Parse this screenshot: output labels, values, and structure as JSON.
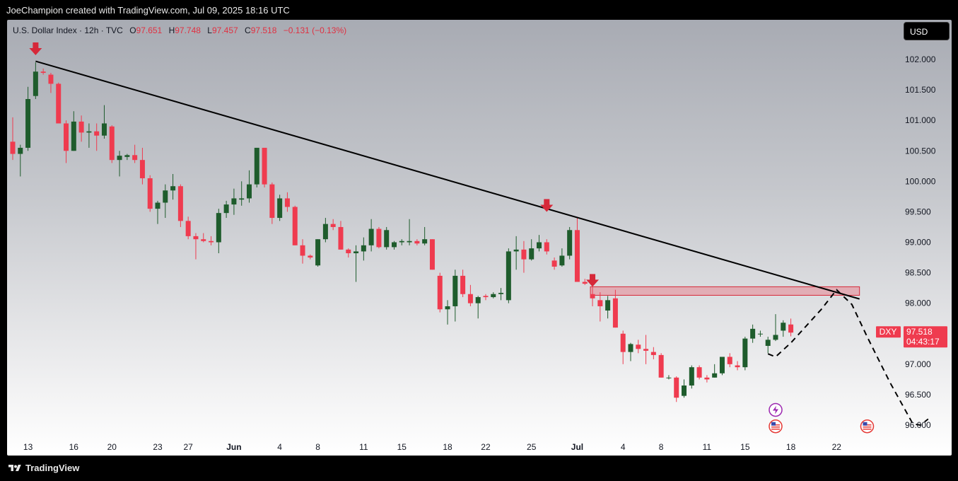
{
  "header": {
    "attribution": "JoeChampion created with TradingView.com, Jul 09, 2025 18:16 UTC"
  },
  "legend": {
    "title": "U.S. Dollar Index · 12h · TVC",
    "o_label": "O",
    "o_value": "97.651",
    "h_label": "H",
    "h_value": "97.748",
    "l_label": "L",
    "l_value": "97.457",
    "c_label": "C",
    "c_value": "97.518",
    "change": "−0.131 (−0.13%)"
  },
  "currency_button": "USD",
  "price_badge": {
    "symbol": "DXY",
    "price": "97.518",
    "countdown": "04:43:17"
  },
  "footer": {
    "brand": "TradingView"
  },
  "colors": {
    "up": "#1e5c2c",
    "down": "#ef3b4f",
    "marker": "#d62839",
    "zone_fill": "rgba(239,83,100,0.35)",
    "zone_stroke": "#d62839"
  },
  "chart_data": {
    "type": "candlestick",
    "symbol": "DXY",
    "interval": "12h",
    "ylim": [
      95.8,
      102.2
    ],
    "y_ticks": [
      "102.000",
      "101.500",
      "101.000",
      "100.500",
      "100.000",
      "99.500",
      "99.000",
      "98.500",
      "98.000",
      "97.500",
      "97.000",
      "96.500",
      "96.000"
    ],
    "x_ticks": [
      {
        "label": "13",
        "i": 2,
        "bold": false
      },
      {
        "label": "16",
        "i": 8,
        "bold": false
      },
      {
        "label": "20",
        "i": 13,
        "bold": false
      },
      {
        "label": "23",
        "i": 19,
        "bold": false
      },
      {
        "label": "27",
        "i": 23,
        "bold": false
      },
      {
        "label": "Jun",
        "i": 29,
        "bold": true
      },
      {
        "label": "4",
        "i": 35,
        "bold": false
      },
      {
        "label": "8",
        "i": 40,
        "bold": false
      },
      {
        "label": "11",
        "i": 46,
        "bold": false
      },
      {
        "label": "15",
        "i": 51,
        "bold": false
      },
      {
        "label": "18",
        "i": 57,
        "bold": false
      },
      {
        "label": "22",
        "i": 62,
        "bold": false
      },
      {
        "label": "25",
        "i": 68,
        "bold": false
      },
      {
        "label": "Jul",
        "i": 74,
        "bold": true
      },
      {
        "label": "4",
        "i": 80,
        "bold": false
      },
      {
        "label": "8",
        "i": 85,
        "bold": false
      },
      {
        "label": "11",
        "i": 91,
        "bold": false
      },
      {
        "label": "15",
        "i": 96,
        "bold": false
      },
      {
        "label": "18",
        "i": 102,
        "bold": false
      },
      {
        "label": "22",
        "i": 108,
        "bold": false
      }
    ],
    "candles": [
      {
        "o": 100.65,
        "h": 101.05,
        "l": 100.35,
        "c": 100.45
      },
      {
        "o": 100.45,
        "h": 100.6,
        "l": 100.08,
        "c": 100.55
      },
      {
        "o": 100.55,
        "h": 101.55,
        "l": 100.5,
        "c": 101.35
      },
      {
        "o": 101.4,
        "h": 101.95,
        "l": 101.35,
        "c": 101.8
      },
      {
        "o": 101.8,
        "h": 101.85,
        "l": 101.75,
        "c": 101.78
      },
      {
        "o": 101.75,
        "h": 101.78,
        "l": 101.45,
        "c": 101.6
      },
      {
        "o": 101.6,
        "h": 101.62,
        "l": 100.95,
        "c": 100.95
      },
      {
        "o": 100.95,
        "h": 101.0,
        "l": 100.3,
        "c": 100.5
      },
      {
        "o": 100.5,
        "h": 101.15,
        "l": 100.5,
        "c": 100.98
      },
      {
        "o": 100.98,
        "h": 101.08,
        "l": 100.65,
        "c": 100.8
      },
      {
        "o": 100.8,
        "h": 100.95,
        "l": 100.55,
        "c": 100.82
      },
      {
        "o": 100.82,
        "h": 100.95,
        "l": 100.5,
        "c": 100.75
      },
      {
        "o": 100.75,
        "h": 101.25,
        "l": 100.7,
        "c": 100.95
      },
      {
        "o": 100.9,
        "h": 100.92,
        "l": 100.3,
        "c": 100.35
      },
      {
        "o": 100.35,
        "h": 100.5,
        "l": 100.08,
        "c": 100.42
      },
      {
        "o": 100.4,
        "h": 100.45,
        "l": 100.35,
        "c": 100.43
      },
      {
        "o": 100.43,
        "h": 100.6,
        "l": 100.3,
        "c": 100.35
      },
      {
        "o": 100.35,
        "h": 100.55,
        "l": 99.95,
        "c": 100.05
      },
      {
        "o": 100.05,
        "h": 100.1,
        "l": 99.5,
        "c": 99.55
      },
      {
        "o": 99.55,
        "h": 99.68,
        "l": 99.3,
        "c": 99.65
      },
      {
        "o": 99.65,
        "h": 99.95,
        "l": 99.4,
        "c": 99.85
      },
      {
        "o": 99.85,
        "h": 100.12,
        "l": 99.7,
        "c": 99.92
      },
      {
        "o": 99.92,
        "h": 99.95,
        "l": 99.25,
        "c": 99.35
      },
      {
        "o": 99.35,
        "h": 99.42,
        "l": 99.05,
        "c": 99.1
      },
      {
        "o": 99.1,
        "h": 99.15,
        "l": 98.72,
        "c": 99.05
      },
      {
        "o": 99.05,
        "h": 99.15,
        "l": 99.0,
        "c": 99.02
      },
      {
        "o": 99.02,
        "h": 99.1,
        "l": 98.95,
        "c": 99.0
      },
      {
        "o": 99.0,
        "h": 99.55,
        "l": 98.82,
        "c": 99.48
      },
      {
        "o": 99.48,
        "h": 99.68,
        "l": 99.4,
        "c": 99.62
      },
      {
        "o": 99.62,
        "h": 99.88,
        "l": 99.45,
        "c": 99.72
      },
      {
        "o": 99.7,
        "h": 100.0,
        "l": 99.6,
        "c": 99.72
      },
      {
        "o": 99.72,
        "h": 100.18,
        "l": 99.65,
        "c": 99.95
      },
      {
        "o": 99.95,
        "h": 100.55,
        "l": 99.9,
        "c": 100.55
      },
      {
        "o": 100.55,
        "h": 100.55,
        "l": 99.9,
        "c": 99.95
      },
      {
        "o": 99.95,
        "h": 99.98,
        "l": 99.3,
        "c": 99.4
      },
      {
        "o": 99.4,
        "h": 99.78,
        "l": 99.35,
        "c": 99.72
      },
      {
        "o": 99.72,
        "h": 99.82,
        "l": 99.5,
        "c": 99.58
      },
      {
        "o": 99.58,
        "h": 99.6,
        "l": 98.95,
        "c": 98.95
      },
      {
        "o": 98.95,
        "h": 99.05,
        "l": 98.65,
        "c": 98.78
      },
      {
        "o": 98.78,
        "h": 98.8,
        "l": 98.72,
        "c": 98.75
      },
      {
        "o": 98.62,
        "h": 99.05,
        "l": 98.6,
        "c": 99.05
      },
      {
        "o": 99.05,
        "h": 99.4,
        "l": 99.0,
        "c": 99.3
      },
      {
        "o": 99.3,
        "h": 99.38,
        "l": 99.2,
        "c": 99.25
      },
      {
        "o": 99.25,
        "h": 99.35,
        "l": 98.88,
        "c": 98.88
      },
      {
        "o": 98.88,
        "h": 98.9,
        "l": 98.75,
        "c": 98.82
      },
      {
        "o": 98.82,
        "h": 98.95,
        "l": 98.35,
        "c": 98.85
      },
      {
        "o": 98.85,
        "h": 99.08,
        "l": 98.7,
        "c": 98.95
      },
      {
        "o": 98.95,
        "h": 99.38,
        "l": 98.85,
        "c": 99.22
      },
      {
        "o": 99.22,
        "h": 99.25,
        "l": 98.9,
        "c": 98.92
      },
      {
        "o": 98.92,
        "h": 99.25,
        "l": 98.88,
        "c": 99.2
      },
      {
        "o": 98.92,
        "h": 99.02,
        "l": 98.88,
        "c": 99.0
      },
      {
        "o": 99.0,
        "h": 99.05,
        "l": 98.95,
        "c": 99.02
      },
      {
        "o": 99.0,
        "h": 99.38,
        "l": 98.95,
        "c": 99.02
      },
      {
        "o": 99.02,
        "h": 99.05,
        "l": 98.95,
        "c": 98.98
      },
      {
        "o": 98.98,
        "h": 99.25,
        "l": 98.95,
        "c": 99.05
      },
      {
        "o": 99.05,
        "h": 99.05,
        "l": 98.55,
        "c": 98.55
      },
      {
        "o": 98.45,
        "h": 98.5,
        "l": 97.85,
        "c": 97.9
      },
      {
        "o": 97.9,
        "h": 98.05,
        "l": 97.65,
        "c": 97.95
      },
      {
        "o": 97.95,
        "h": 98.55,
        "l": 97.7,
        "c": 98.45
      },
      {
        "o": 98.45,
        "h": 98.55,
        "l": 98.1,
        "c": 98.15
      },
      {
        "o": 98.15,
        "h": 98.3,
        "l": 97.95,
        "c": 98.0
      },
      {
        "o": 98.0,
        "h": 98.12,
        "l": 97.75,
        "c": 98.1
      },
      {
        "o": 98.12,
        "h": 98.15,
        "l": 98.05,
        "c": 98.1
      },
      {
        "o": 98.1,
        "h": 98.18,
        "l": 98.08,
        "c": 98.15
      },
      {
        "o": 98.15,
        "h": 98.25,
        "l": 98.05,
        "c": 98.17
      },
      {
        "o": 98.05,
        "h": 98.9,
        "l": 98.0,
        "c": 98.85
      },
      {
        "o": 98.85,
        "h": 99.1,
        "l": 98.55,
        "c": 98.88
      },
      {
        "o": 98.88,
        "h": 99.02,
        "l": 98.5,
        "c": 98.72
      },
      {
        "o": 98.72,
        "h": 99.05,
        "l": 98.7,
        "c": 98.9
      },
      {
        "o": 98.9,
        "h": 99.12,
        "l": 98.85,
        "c": 99.0
      },
      {
        "o": 99.0,
        "h": 99.05,
        "l": 98.8,
        "c": 98.85
      },
      {
        "o": 98.7,
        "h": 98.75,
        "l": 98.55,
        "c": 98.6
      },
      {
        "o": 98.62,
        "h": 98.9,
        "l": 98.6,
        "c": 98.78
      },
      {
        "o": 98.78,
        "h": 99.25,
        "l": 98.72,
        "c": 99.2
      },
      {
        "o": 99.2,
        "h": 99.4,
        "l": 98.35,
        "c": 98.35
      },
      {
        "o": 98.35,
        "h": 98.4,
        "l": 98.3,
        "c": 98.32
      },
      {
        "o": 98.15,
        "h": 98.28,
        "l": 97.95,
        "c": 98.08
      },
      {
        "o": 98.05,
        "h": 98.18,
        "l": 97.7,
        "c": 97.95
      },
      {
        "o": 97.88,
        "h": 98.12,
        "l": 97.75,
        "c": 98.05
      },
      {
        "o": 98.08,
        "h": 98.22,
        "l": 97.6,
        "c": 97.6
      },
      {
        "o": 97.5,
        "h": 97.55,
        "l": 97.0,
        "c": 97.2
      },
      {
        "o": 97.2,
        "h": 97.35,
        "l": 97.05,
        "c": 97.33
      },
      {
        "o": 97.32,
        "h": 97.4,
        "l": 97.18,
        "c": 97.25
      },
      {
        "o": 97.25,
        "h": 97.48,
        "l": 97.0,
        "c": 97.22
      },
      {
        "o": 97.2,
        "h": 97.28,
        "l": 97.08,
        "c": 97.15
      },
      {
        "o": 97.15,
        "h": 97.18,
        "l": 96.78,
        "c": 96.78
      },
      {
        "o": 96.78,
        "h": 96.82,
        "l": 96.75,
        "c": 96.78
      },
      {
        "o": 96.78,
        "h": 96.8,
        "l": 96.38,
        "c": 96.45
      },
      {
        "o": 96.48,
        "h": 96.75,
        "l": 96.45,
        "c": 96.65
      },
      {
        "o": 96.65,
        "h": 96.98,
        "l": 96.6,
        "c": 96.95
      },
      {
        "o": 96.95,
        "h": 96.98,
        "l": 96.75,
        "c": 96.78
      },
      {
        "o": 96.78,
        "h": 96.82,
        "l": 96.7,
        "c": 96.75
      },
      {
        "o": 96.78,
        "h": 97.0,
        "l": 96.78,
        "c": 96.85
      },
      {
        "o": 96.85,
        "h": 97.12,
        "l": 96.82,
        "c": 97.12
      },
      {
        "o": 97.12,
        "h": 97.18,
        "l": 96.95,
        "c": 97.0
      },
      {
        "o": 96.98,
        "h": 97.05,
        "l": 96.9,
        "c": 96.95
      },
      {
        "o": 96.95,
        "h": 97.45,
        "l": 96.9,
        "c": 97.42
      },
      {
        "o": 97.42,
        "h": 97.65,
        "l": 97.35,
        "c": 97.58
      },
      {
        "o": 97.5,
        "h": 97.55,
        "l": 97.45,
        "c": 97.5
      },
      {
        "o": 97.3,
        "h": 97.45,
        "l": 97.18,
        "c": 97.4
      },
      {
        "o": 97.4,
        "h": 97.82,
        "l": 97.38,
        "c": 97.48
      },
      {
        "o": 97.55,
        "h": 97.72,
        "l": 97.45,
        "c": 97.68
      },
      {
        "o": 97.651,
        "h": 97.748,
        "l": 97.457,
        "c": 97.518
      }
    ],
    "trendline": [
      {
        "i": 3,
        "p": 101.97
      },
      {
        "i": 111,
        "p": 98.07
      }
    ],
    "resistance_zone": {
      "i_from": 76,
      "i_to": 111,
      "p_top": 98.27,
      "p_bottom": 98.13
    },
    "arrow_markers": [
      {
        "i": 3,
        "p": 102.0
      },
      {
        "i": 70,
        "p": 99.43
      },
      {
        "i": 76,
        "p": 98.2
      }
    ],
    "projection_path": [
      {
        "i": 99,
        "p": 97.17
      },
      {
        "i": 100,
        "p": 97.12
      },
      {
        "i": 102,
        "p": 97.35
      },
      {
        "i": 106,
        "p": 97.9
      },
      {
        "i": 108,
        "p": 98.22
      },
      {
        "i": 110,
        "p": 97.98
      },
      {
        "i": 112,
        "p": 97.45
      },
      {
        "i": 115,
        "p": 96.7
      },
      {
        "i": 118,
        "p": 96.02
      },
      {
        "i": 119,
        "p": 96.0
      },
      {
        "i": 120,
        "p": 96.1
      }
    ],
    "event_icons": [
      {
        "i": 100,
        "p": 96.25,
        "kind": "lightning-icon"
      },
      {
        "i": 100,
        "p": 95.98,
        "kind": "us-flag-icon"
      },
      {
        "i": 112,
        "p": 95.98,
        "kind": "us-flag-icon"
      }
    ],
    "current_price": 97.518
  }
}
